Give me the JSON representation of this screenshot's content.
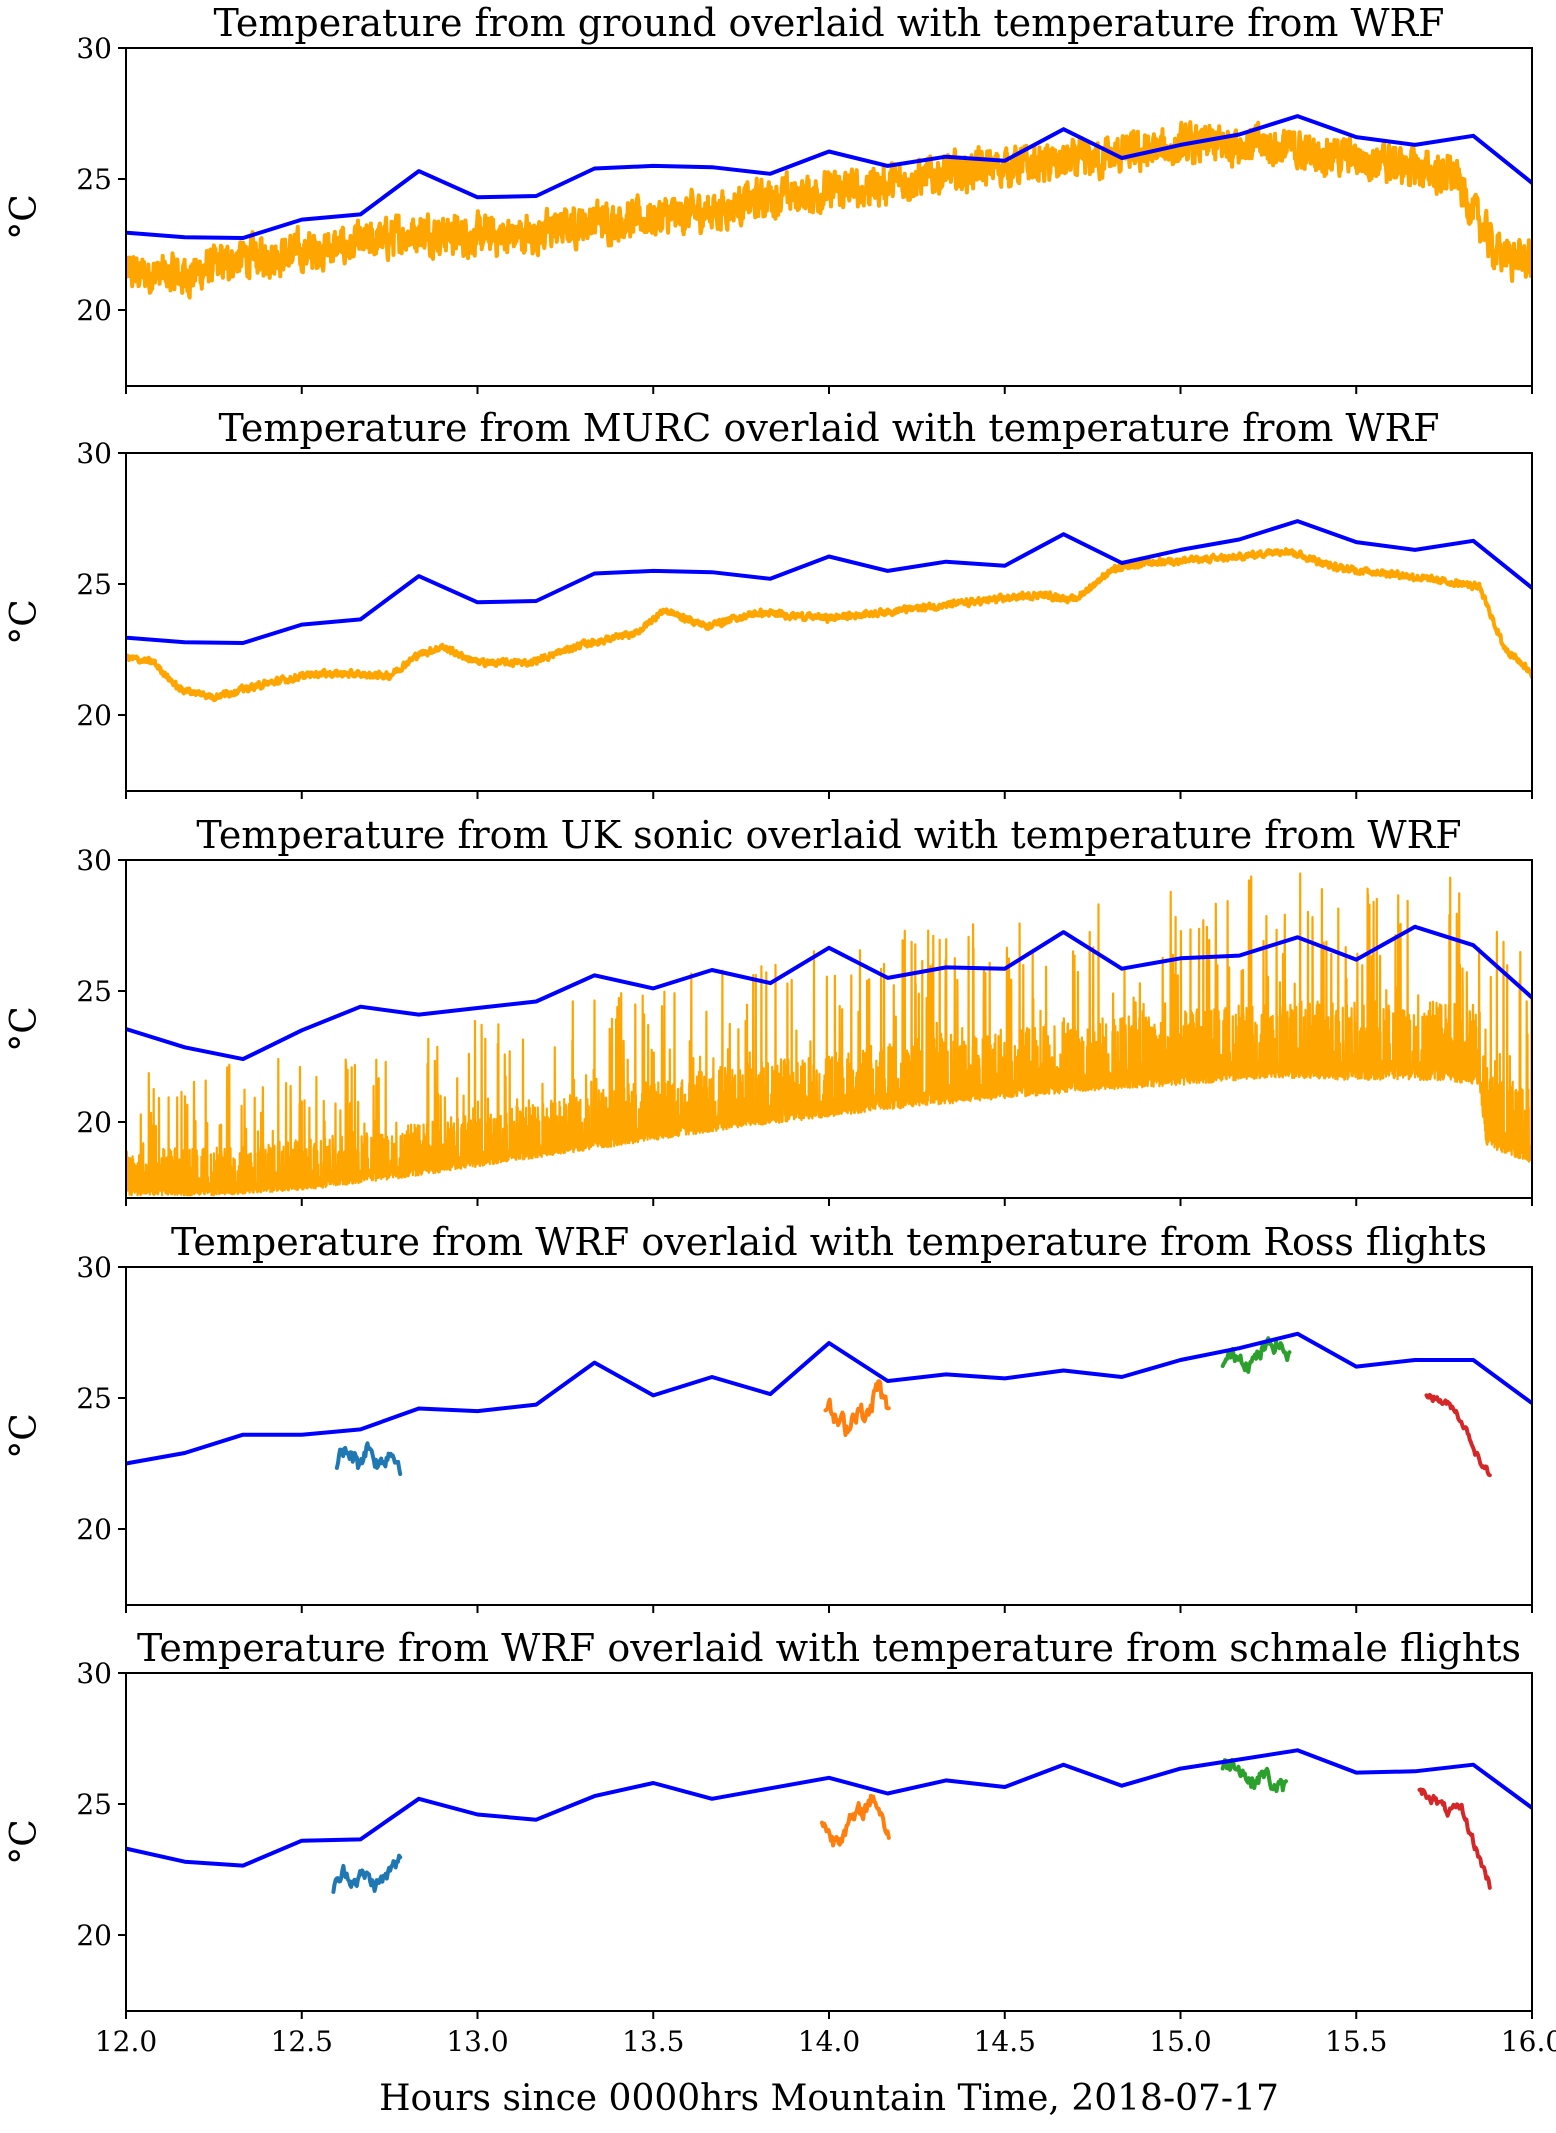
{
  "figure": {
    "xlabel": "Hours since 0000hrs Mountain Time, 2018-07-17",
    "xlim": [
      12.0,
      16.0
    ],
    "x_ticks": [
      "12.0",
      "12.5",
      "13.0",
      "13.5",
      "14.0",
      "14.5",
      "15.0",
      "15.5",
      "16.0"
    ],
    "y_ticks": [
      "20",
      "25",
      "30"
    ],
    "ylabel": "°C"
  },
  "chart_data": [
    {
      "type": "line",
      "title": "Temperature from ground overlaid with temperature from WRF",
      "ylabel": "°C",
      "xlim": [
        12.0,
        16.0
      ],
      "ylim": [
        17.1,
        30.0
      ],
      "series": [
        {
          "role": "wrf",
          "color": "#0000ff",
          "x": [
            12.0,
            12.167,
            12.333,
            12.5,
            12.667,
            12.833,
            13.0,
            13.167,
            13.333,
            13.5,
            13.667,
            13.833,
            14.0,
            14.167,
            14.333,
            14.5,
            14.667,
            14.833,
            15.0,
            15.167,
            15.333,
            15.5,
            15.667,
            15.833,
            16.0
          ],
          "y": [
            22.95,
            22.78,
            22.75,
            23.45,
            23.65,
            25.3,
            24.3,
            24.35,
            25.4,
            25.5,
            25.45,
            25.2,
            26.05,
            25.5,
            25.85,
            25.7,
            26.9,
            25.8,
            26.3,
            26.7,
            27.4,
            26.6,
            26.3,
            26.65,
            24.85
          ]
        },
        {
          "role": "observed",
          "color": "#ffa500",
          "x": [
            12.0,
            12.17,
            12.33,
            12.5,
            12.67,
            12.83,
            13.0,
            13.17,
            13.33,
            13.5,
            13.67,
            13.83,
            14.0,
            14.17,
            14.33,
            14.5,
            14.67,
            14.83,
            15.0,
            15.17,
            15.33,
            15.5,
            15.67,
            15.78,
            15.83,
            15.9,
            16.0
          ],
          "y": [
            21.4,
            21.3,
            22.0,
            22.2,
            22.5,
            23.0,
            22.8,
            22.9,
            23.4,
            23.5,
            23.8,
            24.3,
            24.5,
            24.8,
            25.2,
            25.5,
            25.6,
            25.9,
            26.2,
            26.4,
            26.1,
            25.8,
            25.4,
            25.1,
            23.8,
            22.2,
            21.8
          ],
          "noise": 0.7
        }
      ]
    },
    {
      "type": "line",
      "title": "Temperature from MURC overlaid with temperature from WRF",
      "ylabel": "°C",
      "xlim": [
        12.0,
        16.0
      ],
      "ylim": [
        17.1,
        30.0
      ],
      "series": [
        {
          "role": "wrf",
          "color": "#0000ff",
          "x": [
            12.0,
            12.167,
            12.333,
            12.5,
            12.667,
            12.833,
            13.0,
            13.167,
            13.333,
            13.5,
            13.667,
            13.833,
            14.0,
            14.167,
            14.333,
            14.5,
            14.667,
            14.833,
            15.0,
            15.167,
            15.333,
            15.5,
            15.667,
            15.833,
            16.0
          ],
          "y": [
            22.95,
            22.78,
            22.75,
            23.45,
            23.65,
            25.3,
            24.3,
            24.35,
            25.4,
            25.5,
            25.45,
            25.2,
            26.05,
            25.5,
            25.85,
            25.7,
            26.9,
            25.8,
            26.3,
            26.7,
            27.4,
            26.6,
            26.3,
            26.65,
            24.85
          ]
        },
        {
          "role": "observed",
          "color": "#ffa500",
          "x": [
            12.0,
            12.08,
            12.15,
            12.25,
            12.4,
            12.55,
            12.75,
            12.83,
            12.9,
            13.0,
            13.15,
            13.3,
            13.45,
            13.53,
            13.65,
            13.8,
            14.0,
            14.2,
            14.4,
            14.6,
            14.7,
            14.8,
            14.9,
            15.0,
            15.15,
            15.3,
            15.45,
            15.6,
            15.75,
            15.85,
            15.92,
            16.0
          ],
          "y": [
            22.2,
            22.0,
            21.0,
            20.7,
            21.2,
            21.6,
            21.5,
            22.3,
            22.6,
            22.0,
            22.0,
            22.7,
            23.1,
            24.0,
            23.4,
            23.9,
            23.7,
            24.0,
            24.3,
            24.6,
            24.4,
            25.5,
            25.8,
            25.9,
            26.0,
            26.3,
            25.6,
            25.4,
            25.1,
            24.9,
            22.6,
            21.6
          ],
          "noise": 0.12
        }
      ]
    },
    {
      "type": "line",
      "title": "Temperature from UK sonic overlaid with temperature from WRF",
      "ylabel": "°C",
      "xlim": [
        12.0,
        16.0
      ],
      "ylim": [
        17.1,
        30.0
      ],
      "series": [
        {
          "role": "wrf",
          "color": "#0000ff",
          "x": [
            12.0,
            12.167,
            12.333,
            12.5,
            12.667,
            12.833,
            13.0,
            13.167,
            13.333,
            13.5,
            13.667,
            13.833,
            14.0,
            14.167,
            14.333,
            14.5,
            14.667,
            14.833,
            15.0,
            15.167,
            15.333,
            15.5,
            15.667,
            15.833,
            16.0
          ],
          "y": [
            23.55,
            22.85,
            22.4,
            23.5,
            24.4,
            24.1,
            24.35,
            24.6,
            25.6,
            25.1,
            25.8,
            25.3,
            26.65,
            25.5,
            25.9,
            25.85,
            27.25,
            25.85,
            26.25,
            26.35,
            27.05,
            26.2,
            27.45,
            26.75,
            24.75
          ]
        },
        {
          "role": "observed",
          "color": "#ffa500",
          "x": [
            12.0,
            12.25,
            12.5,
            12.75,
            13.0,
            13.25,
            13.5,
            13.75,
            14.0,
            14.25,
            14.5,
            14.75,
            15.0,
            15.25,
            15.5,
            15.75,
            15.85,
            15.87,
            16.0
          ],
          "y": [
            17.6,
            17.6,
            17.8,
            18.2,
            18.7,
            19.2,
            19.7,
            20.2,
            20.6,
            21.0,
            21.3,
            21.6,
            21.8,
            22.1,
            22.0,
            22.0,
            21.8,
            19.5,
            18.8
          ],
          "noise": 3.4,
          "spiky": true
        }
      ]
    },
    {
      "type": "line",
      "title": "Temperature from WRF overlaid with temperature from Ross flights",
      "ylabel": "°C",
      "xlim": [
        12.0,
        16.0
      ],
      "ylim": [
        17.1,
        30.0
      ],
      "series": [
        {
          "role": "wrf",
          "color": "#0000ff",
          "x": [
            12.0,
            12.167,
            12.333,
            12.5,
            12.667,
            12.833,
            13.0,
            13.167,
            13.333,
            13.5,
            13.667,
            13.833,
            14.0,
            14.167,
            14.333,
            14.5,
            14.667,
            14.833,
            15.0,
            15.167,
            15.333,
            15.5,
            15.667,
            15.833,
            16.0
          ],
          "y": [
            22.5,
            22.9,
            23.6,
            23.6,
            23.8,
            24.6,
            24.5,
            24.75,
            26.35,
            25.1,
            25.8,
            25.15,
            27.1,
            25.65,
            25.9,
            25.75,
            26.05,
            25.8,
            26.45,
            26.9,
            27.45,
            26.2,
            26.45,
            26.45,
            24.8
          ]
        },
        {
          "role": "flight",
          "color": "#1f77b4",
          "x": [
            12.6,
            12.63,
            12.66,
            12.69,
            12.72,
            12.75,
            12.78
          ],
          "y": [
            22.6,
            23.0,
            22.5,
            23.2,
            22.4,
            23.0,
            22.5
          ],
          "noise": 0.35
        },
        {
          "role": "flight",
          "color": "#ff7f0e",
          "x": [
            13.99,
            14.02,
            14.05,
            14.08,
            14.11,
            14.14,
            14.17
          ],
          "y": [
            24.8,
            24.1,
            23.9,
            24.6,
            24.2,
            25.5,
            24.3
          ],
          "noise": 0.4
        },
        {
          "role": "flight",
          "color": "#2ca02c",
          "x": [
            15.12,
            15.16,
            15.2,
            15.24,
            15.28,
            15.31
          ],
          "y": [
            26.4,
            26.7,
            26.3,
            26.9,
            27.1,
            26.5
          ],
          "noise": 0.3
        },
        {
          "role": "flight",
          "color": "#d62728",
          "x": [
            15.7,
            15.74,
            15.78,
            15.82,
            15.85,
            15.88
          ],
          "y": [
            25.2,
            24.9,
            24.6,
            23.6,
            22.6,
            22.1
          ],
          "noise": 0.15
        }
      ]
    },
    {
      "type": "line",
      "title": "Temperature from WRF overlaid with temperature from schmale flights",
      "ylabel": "°C",
      "xlim": [
        12.0,
        16.0
      ],
      "ylim": [
        17.1,
        30.0
      ],
      "series": [
        {
          "role": "wrf",
          "color": "#0000ff",
          "x": [
            12.0,
            12.167,
            12.333,
            12.5,
            12.667,
            12.833,
            13.0,
            13.167,
            13.333,
            13.5,
            13.667,
            13.833,
            14.0,
            14.167,
            14.333,
            14.5,
            14.667,
            14.833,
            15.0,
            15.167,
            15.333,
            15.5,
            15.667,
            15.833,
            16.0
          ],
          "y": [
            23.3,
            22.8,
            22.65,
            23.6,
            23.65,
            25.2,
            24.6,
            24.4,
            25.3,
            25.8,
            25.2,
            25.6,
            26.0,
            25.4,
            25.9,
            25.65,
            26.5,
            25.7,
            26.35,
            26.7,
            27.05,
            26.2,
            26.25,
            26.5,
            24.85
          ]
        },
        {
          "role": "flight",
          "color": "#1f77b4",
          "x": [
            12.59,
            12.62,
            12.65,
            12.68,
            12.71,
            12.74,
            12.78
          ],
          "y": [
            21.7,
            22.4,
            22.1,
            22.3,
            21.9,
            22.2,
            22.9
          ],
          "noise": 0.3
        },
        {
          "role": "flight",
          "color": "#ff7f0e",
          "x": [
            13.98,
            14.01,
            14.04,
            14.07,
            14.1,
            14.13,
            14.17
          ],
          "y": [
            24.5,
            23.6,
            24.0,
            24.4,
            24.8,
            25.3,
            23.8
          ],
          "noise": 0.35
        },
        {
          "role": "flight",
          "color": "#2ca02c",
          "x": [
            15.12,
            15.16,
            15.2,
            15.24,
            15.27,
            15.3
          ],
          "y": [
            26.4,
            26.6,
            25.8,
            26.2,
            25.6,
            25.6
          ],
          "noise": 0.3
        },
        {
          "role": "flight",
          "color": "#d62728",
          "x": [
            15.68,
            15.72,
            15.76,
            15.8,
            15.84,
            15.88
          ],
          "y": [
            25.6,
            25.2,
            24.7,
            24.8,
            23.3,
            21.9
          ],
          "noise": 0.2
        }
      ]
    }
  ]
}
